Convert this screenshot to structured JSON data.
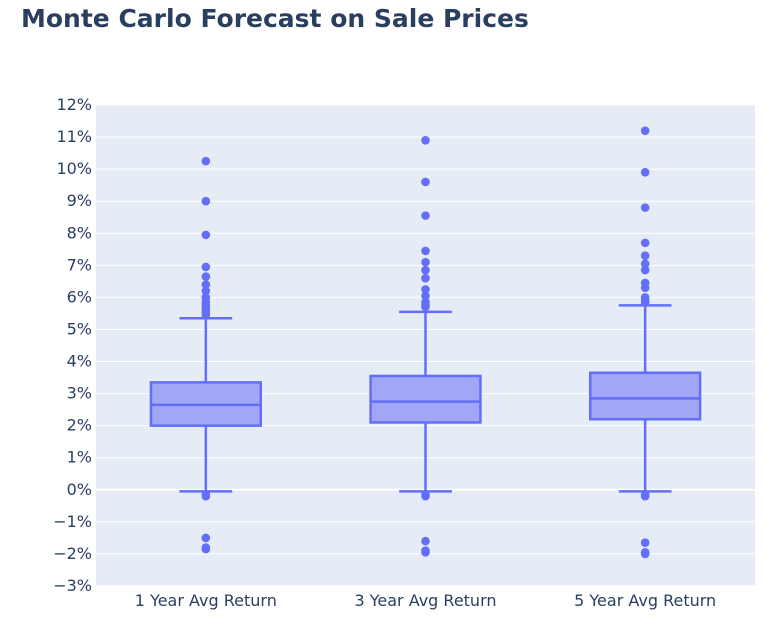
{
  "chart_data": {
    "type": "box",
    "title": "Monte Carlo Forecast on Sale Prices",
    "xlabel": "",
    "ylabel": "",
    "ylim": [
      -3,
      12
    ],
    "y_ticks": [
      12,
      11,
      10,
      9,
      8,
      7,
      6,
      5,
      4,
      3,
      2,
      1,
      0,
      -1,
      -2,
      -3
    ],
    "y_tick_labels": [
      "12%",
      "11%",
      "10%",
      "9%",
      "8%",
      "7%",
      "6%",
      "5%",
      "4%",
      "3%",
      "2%",
      "1%",
      "0%",
      "−1%",
      "−2%",
      "−3%"
    ],
    "grid": true,
    "categories": [
      "1 Year Avg Return",
      "3 Year Avg Return",
      "5 Year Avg Return"
    ],
    "boxes": [
      {
        "category": "1 Year Avg Return",
        "lower_whisker": -0.05,
        "q1": 2.0,
        "median": 2.65,
        "q3": 3.35,
        "upper_whisker": 5.35,
        "outliers": [
          10.25,
          9.0,
          7.95,
          6.95,
          6.65,
          6.4,
          6.2,
          6.0,
          5.85,
          5.75,
          5.65,
          5.55,
          5.45,
          -0.15,
          -0.2,
          -1.5,
          -1.8,
          -1.85
        ]
      },
      {
        "category": "3 Year Avg Return",
        "lower_whisker": -0.05,
        "q1": 2.1,
        "median": 2.75,
        "q3": 3.55,
        "upper_whisker": 5.55,
        "outliers": [
          10.9,
          9.6,
          8.55,
          7.45,
          7.1,
          6.85,
          6.6,
          6.25,
          6.05,
          5.85,
          5.75,
          5.7,
          -0.15,
          -0.2,
          -1.6,
          -1.9,
          -1.95
        ]
      },
      {
        "category": "5 Year Avg Return",
        "lower_whisker": -0.05,
        "q1": 2.2,
        "median": 2.85,
        "q3": 3.65,
        "upper_whisker": 5.75,
        "outliers": [
          11.2,
          9.9,
          8.8,
          7.7,
          7.3,
          7.05,
          6.85,
          6.45,
          6.3,
          6.0,
          5.9,
          5.85,
          -0.15,
          -0.2,
          -1.65,
          -1.95,
          -2.0
        ]
      }
    ],
    "colors": {
      "plot_background": "#e5ecf6",
      "grid": "#ffffff",
      "box_line": "#636efa",
      "box_fill": "#a1a7f6",
      "text": "#2a3f5f"
    }
  }
}
